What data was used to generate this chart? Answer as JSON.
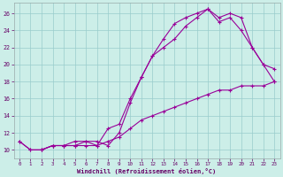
{
  "xlabel": "Windchill (Refroidissement éolien,°C)",
  "background_color": "#cceee8",
  "line_color": "#990099",
  "grid_color": "#99cccc",
  "x_min": 0,
  "x_max": 23,
  "y_min": 9,
  "y_max": 27,
  "y_ticks": [
    10,
    12,
    14,
    16,
    18,
    20,
    22,
    24,
    26
  ],
  "x_ticks": [
    0,
    1,
    2,
    3,
    4,
    5,
    6,
    7,
    8,
    9,
    10,
    11,
    12,
    13,
    14,
    15,
    16,
    17,
    18,
    19,
    20,
    21,
    22,
    23
  ],
  "line1_x": [
    0,
    1,
    2,
    3,
    4,
    5,
    6,
    7,
    8,
    9,
    10,
    11,
    12,
    13,
    14,
    15,
    16,
    17,
    18,
    19,
    20,
    21,
    22,
    23
  ],
  "line1_y": [
    11,
    10,
    10,
    10.5,
    10.5,
    10.5,
    11,
    11,
    10.5,
    12,
    15.5,
    18.5,
    21,
    23,
    24.8,
    25.5,
    26,
    26.5,
    25.5,
    26,
    25.5,
    22,
    20,
    19.5
  ],
  "line2_x": [
    2,
    3,
    4,
    5,
    6,
    7,
    8,
    9,
    10,
    11,
    12,
    13,
    14,
    15,
    16,
    17,
    18,
    19,
    20,
    21,
    22,
    23
  ],
  "line2_y": [
    10,
    10.5,
    10.5,
    11,
    11,
    10.5,
    12.5,
    13,
    16,
    18.5,
    21,
    22,
    23,
    24.5,
    25.5,
    26.5,
    25,
    25.5,
    24,
    22,
    20,
    18
  ],
  "line3_x": [
    0,
    1,
    2,
    3,
    4,
    5,
    6,
    7,
    8,
    9,
    10,
    11,
    12,
    13,
    14,
    15,
    16,
    17,
    18,
    19,
    20,
    21,
    22,
    23
  ],
  "line3_y": [
    11,
    10,
    10,
    10.5,
    10.5,
    10.5,
    10.5,
    10.5,
    11,
    11.5,
    12.5,
    13.5,
    14,
    14.5,
    15,
    15.5,
    16,
    16.5,
    17,
    17,
    17.5,
    17.5,
    17.5,
    18
  ]
}
